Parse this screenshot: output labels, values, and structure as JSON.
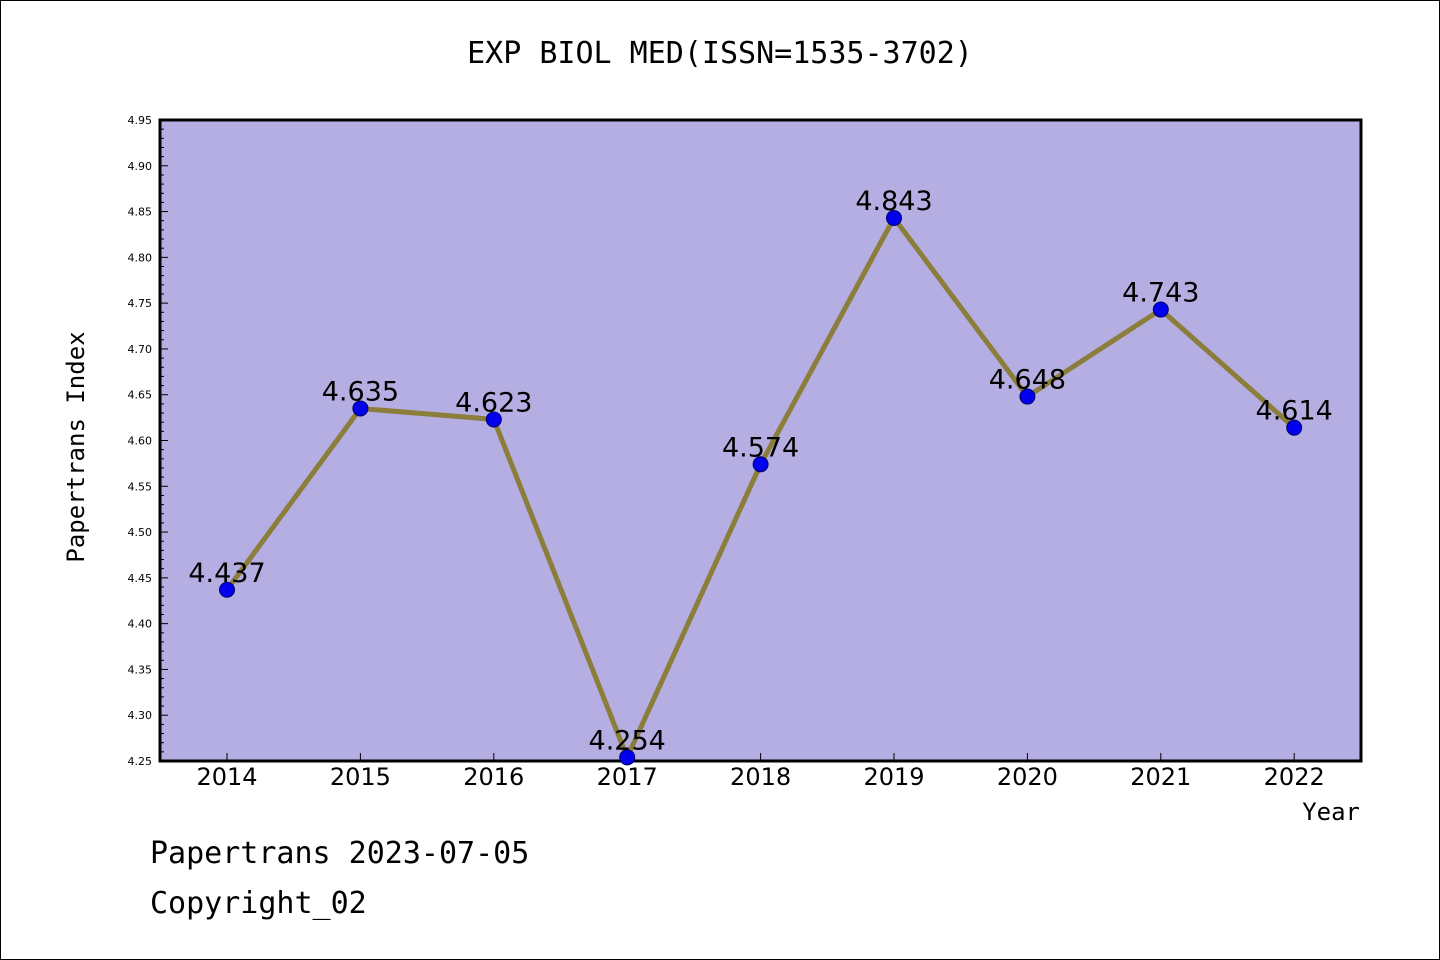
{
  "chart_data": {
    "type": "line",
    "title": "EXP BIOL MED(ISSN=1535-3702)",
    "xlabel": "Year",
    "ylabel": "Papertrans Index",
    "x": [
      "2014",
      "2015",
      "2016",
      "2017",
      "2018",
      "2019",
      "2020",
      "2021",
      "2022"
    ],
    "series": [
      {
        "values": [
          4.437,
          4.635,
          4.623,
          4.254,
          4.574,
          4.843,
          4.648,
          4.743,
          4.614
        ],
        "labels": [
          "4.437",
          "4.635",
          "4.623",
          "4.254",
          "4.574",
          "4.843",
          "4.648",
          "4.743",
          "4.614"
        ]
      }
    ],
    "ylim": [
      4.25,
      4.95
    ],
    "yticks": [
      "4.25",
      "4.30",
      "4.35",
      "4.40",
      "4.45",
      "4.50",
      "4.55",
      "4.60",
      "4.65",
      "4.70",
      "4.75",
      "4.80",
      "4.85",
      "4.90",
      "4.95"
    ],
    "grid": false,
    "colors": {
      "plot_background": "#b5aee3",
      "line": "#8b7d3a",
      "marker": "#0000ee",
      "marker_edge": "#000066"
    }
  },
  "footer": {
    "date_line": "Papertrans 2023-07-05",
    "copyright": "Copyright_02"
  }
}
